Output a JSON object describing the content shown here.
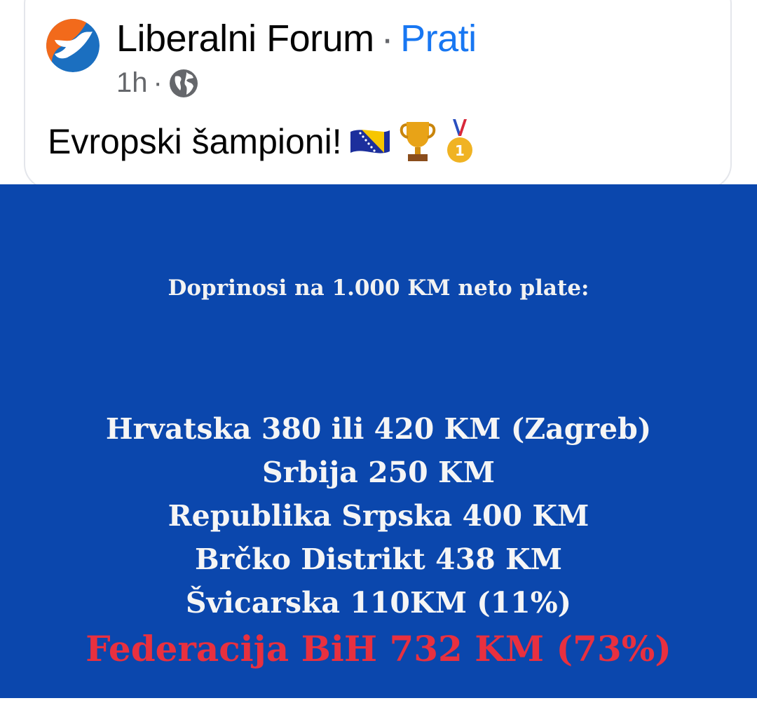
{
  "post": {
    "page_name": "Liberalni Forum",
    "separator": "·",
    "follow_label": "Prati",
    "time": "1h",
    "meta_separator": "·",
    "privacy_icon": "globe-icon",
    "caption": "Evropski šampioni!",
    "emojis": [
      "bosnia-flag-icon",
      "trophy-icon",
      "gold-medal-icon"
    ]
  },
  "image": {
    "background": "#0b47ad",
    "title": "Doprinosi na 1.000 KM neto plate:",
    "lines": [
      "Hrvatska 380 ili 420 KM (Zagreb)",
      "Srbija 250 KM",
      "Republika Srpska 400 KM",
      "Brčko Distrikt 438 KM",
      "Švicarska 110KM (11%)"
    ],
    "highlight": "Federacija BiH 732 KM (73%)",
    "highlight_color": "#e8303f"
  }
}
